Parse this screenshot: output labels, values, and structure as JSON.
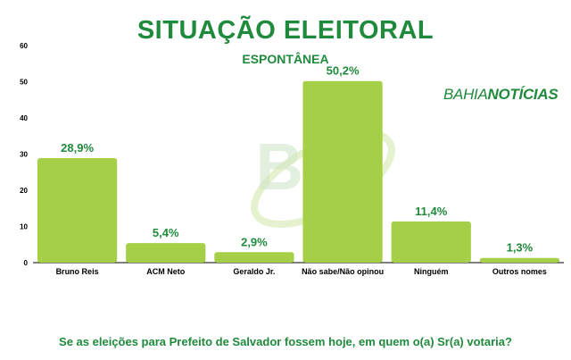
{
  "header": {
    "title": "SITUAÇÃO ELEITORAL",
    "subtitle": "ESPONTÂNEA",
    "brand_part1": "BAHIA",
    "brand_part2": "NOTÍCIAS"
  },
  "watermark": {
    "text": "BN"
  },
  "footer": {
    "question": "Se as eleições para Prefeito de Salvador fossem hoje, em quem o(a) Sr(a) votaria?"
  },
  "colors": {
    "bar": "#a5cf46",
    "text_green": "#1f8a3c",
    "axis": "#000000"
  },
  "chart_data": {
    "type": "bar",
    "categories": [
      "Bruno Reis",
      "ACM Neto",
      "Geraldo Jr.",
      "Não sabe/Não opinou",
      "Ninguém",
      "Outros nomes"
    ],
    "values": [
      28.9,
      5.4,
      2.9,
      50.2,
      11.4,
      1.3
    ],
    "data_labels": [
      "28,9%",
      "5,4%",
      "2,9%",
      "50,2%",
      "11,4%",
      "1,3%"
    ],
    "ylim": [
      0,
      60
    ],
    "yticks": [
      0,
      10,
      20,
      30,
      40,
      50,
      60
    ],
    "grid": false,
    "legend": "none"
  }
}
